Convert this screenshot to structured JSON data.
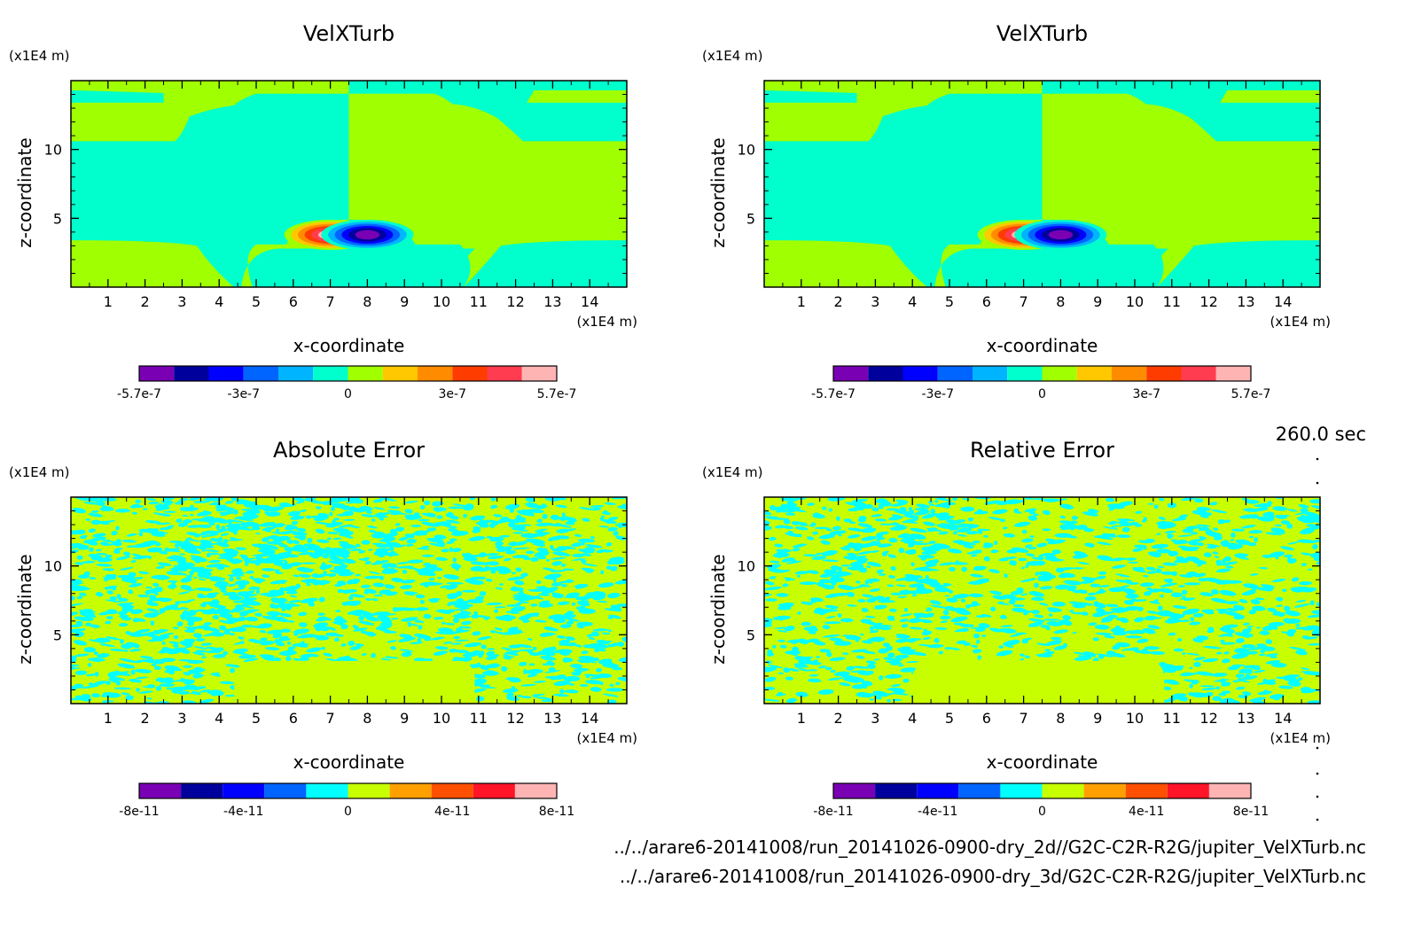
{
  "page": {
    "time_label": "260.0 sec",
    "file_lines": [
      "../../arare6-20141008/run_20141026-0900-dry_2d//G2C-C2R-R2G/jupiter_VelXTurb.nc",
      "../../arare6-20141008/run_20141026-0900-dry_3d/G2C-C2R-R2G/jupiter_VelXTurb.nc"
    ]
  },
  "chart_data": [
    {
      "type": "heatmap",
      "title": "VelXTurb",
      "xlabel": "x-coordinate",
      "ylabel": "z-coordinate",
      "x_unit": "(x1E4 m)",
      "y_unit": "(x1E4 m)",
      "xlim": [
        0,
        15
      ],
      "ylim": [
        0,
        15
      ],
      "xticks": [
        1,
        2,
        3,
        4,
        5,
        6,
        7,
        8,
        9,
        10,
        11,
        12,
        13,
        14
      ],
      "yticks": [
        5,
        10
      ],
      "colorbar": {
        "levels": 12,
        "colors": [
          "#7a00b4",
          "#00009c",
          "#0000ff",
          "#0064ff",
          "#00b4ff",
          "#00ffcc",
          "#a0ff00",
          "#ffc800",
          "#ff8c00",
          "#ff3c00",
          "#ff3c50",
          "#ffb4b4"
        ],
        "tick_labels": [
          "-5.7e-7",
          "-3e-7",
          "0",
          "3e-7",
          "5.7e-7"
        ]
      },
      "field": "VelXTurb (dry_2d)",
      "features": {
        "background_positive_color": "#a0ff00",
        "background_negative_color": "#00ffcc",
        "positive_core_center": [
          7.0,
          3.8
        ],
        "negative_core_center": [
          8.0,
          3.8
        ]
      }
    },
    {
      "type": "heatmap",
      "title": "VelXTurb",
      "xlabel": "x-coordinate",
      "ylabel": "z-coordinate",
      "x_unit": "(x1E4 m)",
      "y_unit": "(x1E4 m)",
      "xlim": [
        0,
        15
      ],
      "ylim": [
        0,
        15
      ],
      "xticks": [
        1,
        2,
        3,
        4,
        5,
        6,
        7,
        8,
        9,
        10,
        11,
        12,
        13,
        14
      ],
      "yticks": [
        5,
        10
      ],
      "colorbar": {
        "levels": 12,
        "colors": [
          "#7a00b4",
          "#00009c",
          "#0000ff",
          "#0064ff",
          "#00b4ff",
          "#00ffcc",
          "#a0ff00",
          "#ffc800",
          "#ff8c00",
          "#ff3c00",
          "#ff3c50",
          "#ffb4b4"
        ],
        "tick_labels": [
          "-5.7e-7",
          "-3e-7",
          "0",
          "3e-7",
          "5.7e-7"
        ]
      },
      "field": "VelXTurb (dry_3d)",
      "features": {
        "background_positive_color": "#a0ff00",
        "background_negative_color": "#00ffcc",
        "positive_core_center": [
          7.0,
          3.8
        ],
        "negative_core_center": [
          8.0,
          3.8
        ]
      }
    },
    {
      "type": "heatmap",
      "title": "Absolute Error",
      "xlabel": "x-coordinate",
      "ylabel": "z-coordinate",
      "x_unit": "(x1E4 m)",
      "y_unit": "(x1E4 m)",
      "xlim": [
        0,
        15
      ],
      "ylim": [
        0,
        15
      ],
      "xticks": [
        1,
        2,
        3,
        4,
        5,
        6,
        7,
        8,
        9,
        10,
        11,
        12,
        13,
        14
      ],
      "yticks": [
        5,
        10
      ],
      "colorbar": {
        "levels": 10,
        "colors": [
          "#7a00b4",
          "#00009c",
          "#0000ff",
          "#0064ff",
          "#00ffff",
          "#c8ff00",
          "#ffa000",
          "#ff5000",
          "#ff1428",
          "#ffb4b4"
        ],
        "tick_labels": [
          "-8e-11",
          "-4e-11",
          "0",
          "4e-11",
          "8e-11"
        ]
      },
      "field": "noise",
      "features": {
        "colors_used": [
          "#00ffff",
          "#c8ff00"
        ],
        "uniform_region_x": [
          4.6,
          10.8
        ],
        "uniform_region_z_max": 3.1
      }
    },
    {
      "type": "heatmap",
      "title": "Relative Error",
      "xlabel": "x-coordinate",
      "ylabel": "z-coordinate",
      "x_unit": "(x1E4 m)",
      "y_unit": "(x1E4 m)",
      "xlim": [
        0,
        15
      ],
      "ylim": [
        0,
        15
      ],
      "xticks": [
        1,
        2,
        3,
        4,
        5,
        6,
        7,
        8,
        9,
        10,
        11,
        12,
        13,
        14
      ],
      "yticks": [
        5,
        10
      ],
      "colorbar": {
        "levels": 10,
        "colors": [
          "#7a00b4",
          "#00009c",
          "#0000ff",
          "#0064ff",
          "#00ffff",
          "#c8ff00",
          "#ffa000",
          "#ff5000",
          "#ff1428",
          "#ffb4b4"
        ],
        "tick_labels": [
          "-8e-11",
          "-4e-11",
          "0",
          "4e-11",
          "8e-11"
        ]
      },
      "field": "noise",
      "features": {
        "colors_used": [
          "#00ffff",
          "#c8ff00"
        ],
        "uniform_region_x": [
          4.2,
          10.7
        ],
        "uniform_region_z_max": 3.1
      }
    }
  ]
}
